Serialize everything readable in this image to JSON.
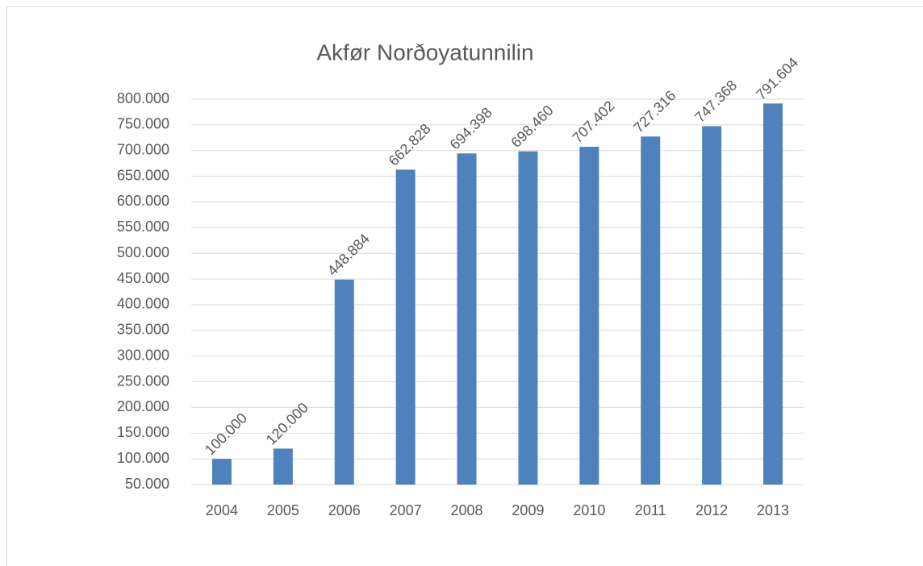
{
  "chart_data": {
    "type": "bar",
    "title": "Akfør Norðoyatunnilin",
    "categories": [
      "2004",
      "2005",
      "2006",
      "2007",
      "2008",
      "2009",
      "2010",
      "2011",
      "2012",
      "2013"
    ],
    "values": [
      100000,
      120000,
      448884,
      662828,
      694398,
      698460,
      707402,
      727316,
      747368,
      791604
    ],
    "value_labels": [
      "100.000",
      "120.000",
      "448.884",
      "662.828",
      "694.398",
      "698.460",
      "707.402",
      "727.316",
      "747.368",
      "791.604"
    ],
    "color": "#4f81bd",
    "ylim": [
      50000,
      800000
    ],
    "yticks": [
      {
        "value": 50000,
        "label": "50.000"
      },
      {
        "value": 100000,
        "label": "100.000"
      },
      {
        "value": 150000,
        "label": "150.000"
      },
      {
        "value": 200000,
        "label": "200.000"
      },
      {
        "value": 250000,
        "label": "250.000"
      },
      {
        "value": 300000,
        "label": "300.000"
      },
      {
        "value": 350000,
        "label": "350.000"
      },
      {
        "value": 400000,
        "label": "400.000"
      },
      {
        "value": 450000,
        "label": "450.000"
      },
      {
        "value": 500000,
        "label": "500.000"
      },
      {
        "value": 550000,
        "label": "550.000"
      },
      {
        "value": 600000,
        "label": "600.000"
      },
      {
        "value": 650000,
        "label": "650.000"
      },
      {
        "value": 700000,
        "label": "700.000"
      },
      {
        "value": 750000,
        "label": "750.000"
      },
      {
        "value": 800000,
        "label": "800.000"
      }
    ],
    "grid": true
  }
}
